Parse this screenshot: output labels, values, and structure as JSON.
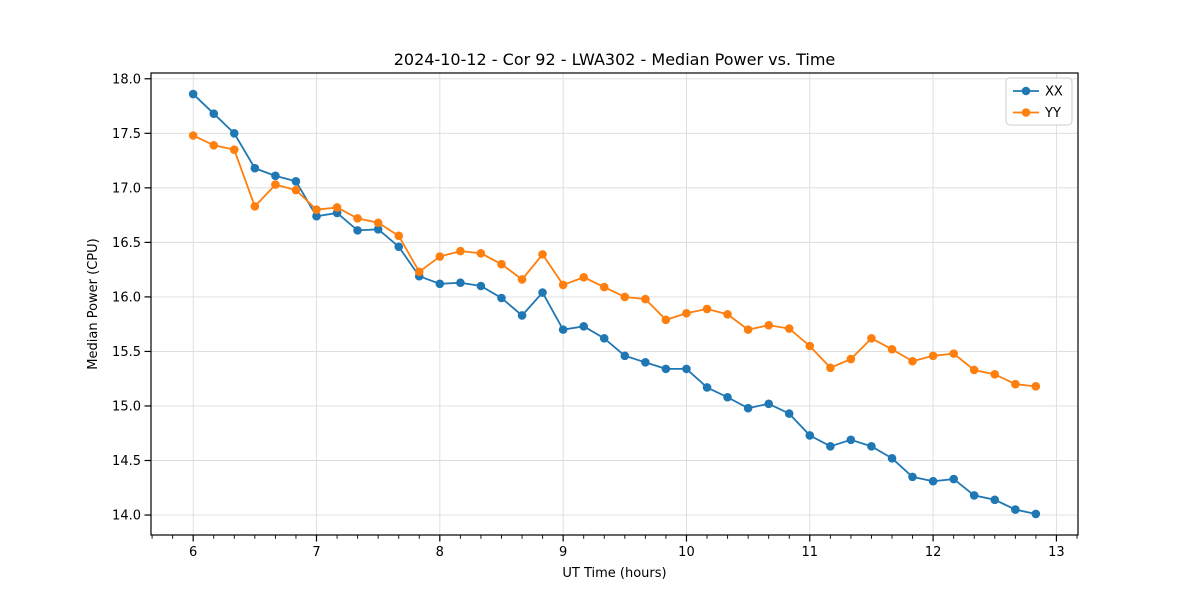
{
  "page": {
    "background": "#ffffff"
  },
  "chart_data": {
    "type": "line",
    "title": "2024-10-12 - Cor 92 - LWA302 - Median Power vs. Time",
    "xlabel": "UT Time (hours)",
    "ylabel": "Median Power (CPU)",
    "x": [
      6.0,
      6.167,
      6.333,
      6.5,
      6.667,
      6.833,
      7.0,
      7.167,
      7.333,
      7.5,
      7.667,
      7.833,
      8.0,
      8.167,
      8.333,
      8.5,
      8.667,
      8.833,
      9.0,
      9.167,
      9.333,
      9.5,
      9.667,
      9.833,
      10.0,
      10.167,
      10.333,
      10.5,
      10.667,
      10.833,
      11.0,
      11.167,
      11.333,
      11.5,
      11.667,
      11.833,
      12.0,
      12.167,
      12.333,
      12.5,
      12.667,
      12.833
    ],
    "series": [
      {
        "name": "XX",
        "color": "#1f77b4",
        "marker": "circle",
        "values": [
          17.86,
          17.68,
          17.5,
          17.18,
          17.11,
          17.06,
          16.74,
          16.77,
          16.61,
          16.62,
          16.46,
          16.19,
          16.12,
          16.13,
          16.1,
          15.99,
          15.83,
          16.04,
          15.7,
          15.73,
          15.62,
          15.46,
          15.4,
          15.34,
          15.34,
          15.17,
          15.08,
          14.98,
          15.02,
          14.93,
          14.73,
          14.63,
          14.69,
          14.63,
          14.52,
          14.35,
          14.31,
          14.33,
          14.18,
          14.14,
          14.05,
          14.01
        ]
      },
      {
        "name": "YY",
        "color": "#ff7f0e",
        "marker": "circle",
        "values": [
          17.48,
          17.39,
          17.35,
          16.83,
          17.03,
          16.98,
          16.8,
          16.82,
          16.72,
          16.68,
          16.56,
          16.23,
          16.37,
          16.42,
          16.4,
          16.3,
          16.16,
          16.39,
          16.11,
          16.18,
          16.09,
          16.0,
          15.98,
          15.79,
          15.85,
          15.89,
          15.84,
          15.7,
          15.74,
          15.71,
          15.55,
          15.35,
          15.43,
          15.62,
          15.52,
          15.41,
          15.46,
          15.48,
          15.33,
          15.29,
          15.2,
          15.18
        ]
      }
    ],
    "x_tick_labels": [
      "6",
      "7",
      "8",
      "9",
      "10",
      "11",
      "12",
      "13"
    ],
    "x_ticks": [
      6,
      7,
      8,
      9,
      10,
      11,
      12,
      13
    ],
    "y_tick_labels": [
      "14.0",
      "14.5",
      "15.0",
      "15.5",
      "16.0",
      "16.5",
      "17.0",
      "17.5",
      "18.0"
    ],
    "y_ticks": [
      14.0,
      14.5,
      15.0,
      15.5,
      16.0,
      16.5,
      17.0,
      17.5,
      18.0
    ],
    "xlim": [
      5.658,
      13.175
    ],
    "ylim": [
      13.817,
      18.053
    ],
    "x_minor_tick_step": 0.16667,
    "grid": true,
    "grid_color": "#dcdcdc",
    "spine_color": "#000000",
    "legend": {
      "position": "upper right",
      "entries": [
        "XX",
        "YY"
      ]
    }
  }
}
